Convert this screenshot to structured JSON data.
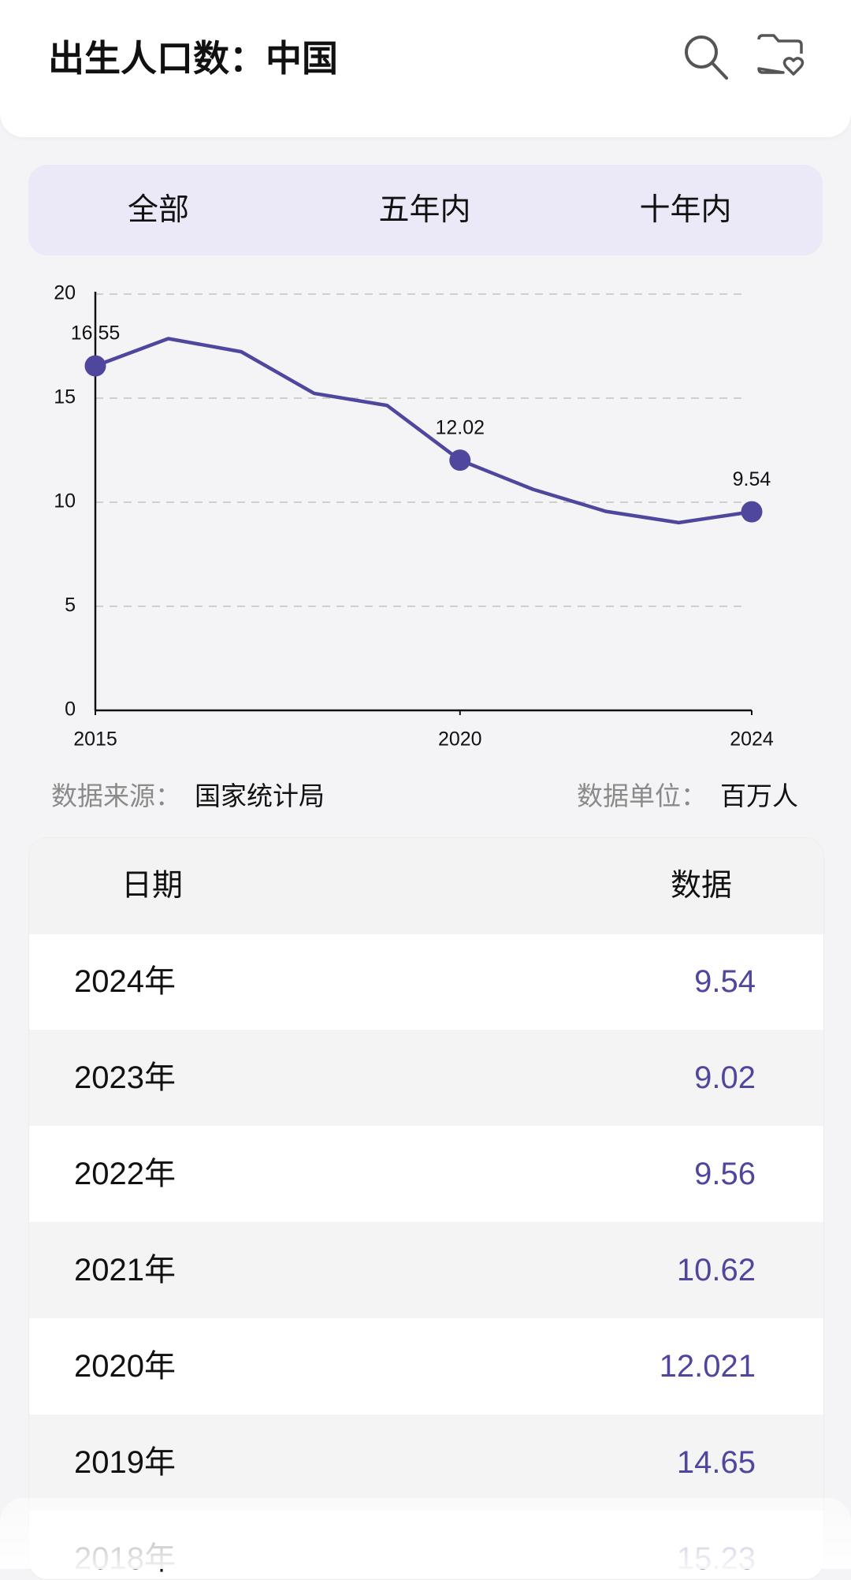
{
  "header": {
    "title": "出生人口数：中国"
  },
  "tabs": [
    "全部",
    "五年内",
    "十年内"
  ],
  "chart_data": {
    "type": "line",
    "x": [
      2015,
      2016,
      2017,
      2018,
      2019,
      2020,
      2021,
      2022,
      2023,
      2024
    ],
    "series": [
      {
        "color": "#4f469e",
        "values": [
          16.55,
          17.86,
          17.23,
          15.23,
          14.65,
          12.021,
          10.62,
          9.56,
          9.02,
          9.54
        ],
        "value_labels": [
          "16.55",
          null,
          null,
          null,
          null,
          "12.02",
          null,
          null,
          null,
          "9.54"
        ]
      }
    ],
    "xlim": [
      2015,
      2024
    ],
    "xticks": [
      2015,
      2020,
      2024
    ],
    "ylim": [
      0,
      20
    ],
    "yticks": [
      0,
      5,
      10,
      15,
      20
    ],
    "grid": true
  },
  "source": {
    "label": "数据来源：",
    "value": "国家统计局"
  },
  "unit": {
    "label": "数据单位：",
    "value": "百万人"
  },
  "table": {
    "header": [
      "日期",
      "数据"
    ],
    "rows": [
      [
        "2024年",
        9.54
      ],
      [
        "2023年",
        9.02
      ],
      [
        "2022年",
        9.56
      ],
      [
        "2021年",
        10.62
      ],
      [
        "2020年",
        12.021
      ],
      [
        "2019年",
        14.65
      ],
      [
        "2018年",
        15.23
      ]
    ]
  }
}
